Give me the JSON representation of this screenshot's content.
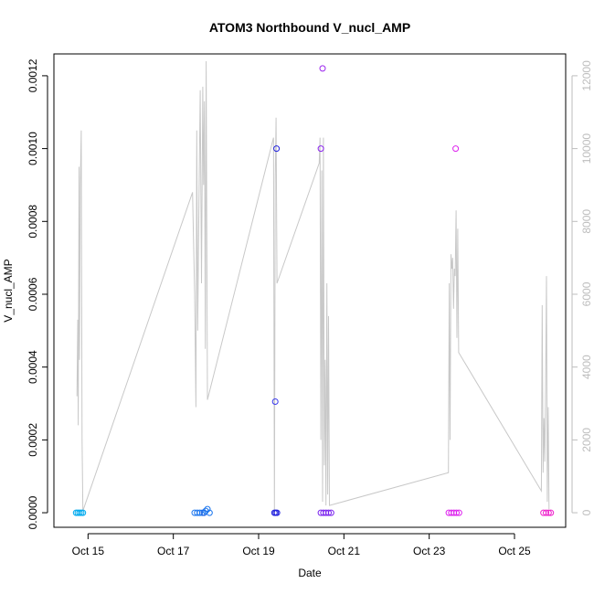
{
  "chart_data": {
    "type": "scatter",
    "title": "ATOM3 Northbound V_nucl_AMP",
    "xlabel": "Date",
    "ylabel": "V_nucl_AMP",
    "x_unit": "days (October)",
    "xlim": [
      14.2,
      26.2
    ],
    "ylim": [
      -4e-05,
      0.00126
    ],
    "y2lim": [
      -400,
      12600
    ],
    "x_ticks": [
      {
        "value": 15,
        "label": "Oct 15"
      },
      {
        "value": 17,
        "label": "Oct 17"
      },
      {
        "value": 19,
        "label": "Oct 19"
      },
      {
        "value": 21,
        "label": "Oct 21"
      },
      {
        "value": 23,
        "label": "Oct 23"
      },
      {
        "value": 25,
        "label": "Oct 25"
      }
    ],
    "y_ticks": [
      {
        "value": 0,
        "label": "0.0000"
      },
      {
        "value": 0.0002,
        "label": "0.0002"
      },
      {
        "value": 0.0004,
        "label": "0.0004"
      },
      {
        "value": 0.0006,
        "label": "0.0006"
      },
      {
        "value": 0.0008,
        "label": "0.0008"
      },
      {
        "value": 0.001,
        "label": "0.0010"
      },
      {
        "value": 0.0012,
        "label": "0.0012"
      }
    ],
    "y2_ticks": [
      {
        "value": 0,
        "label": "0"
      },
      {
        "value": 2000,
        "label": "2000"
      },
      {
        "value": 4000,
        "label": "4000"
      },
      {
        "value": 6000,
        "label": "6000"
      },
      {
        "value": 8000,
        "label": "8000"
      },
      {
        "value": 10000,
        "label": "10000"
      },
      {
        "value": 12000,
        "label": "12000"
      }
    ],
    "grid": false,
    "colors": {
      "line": "#c8c8c8",
      "right_axis": "#bdbdbd"
    },
    "points": [
      {
        "x": 14.72,
        "y": 0,
        "color": "#00aaee"
      },
      {
        "x": 14.76,
        "y": 0,
        "color": "#00aaee"
      },
      {
        "x": 14.8,
        "y": 0,
        "color": "#00aaee"
      },
      {
        "x": 14.84,
        "y": 0,
        "color": "#00aaee"
      },
      {
        "x": 14.88,
        "y": 0,
        "color": "#00aaee"
      },
      {
        "x": 17.5,
        "y": 0,
        "color": "#1a75ee"
      },
      {
        "x": 17.56,
        "y": 0,
        "color": "#1a75ee"
      },
      {
        "x": 17.62,
        "y": 0,
        "color": "#1a75ee"
      },
      {
        "x": 17.68,
        "y": 0,
        "color": "#1a75ee"
      },
      {
        "x": 17.72,
        "y": 0,
        "color": "#2060e0"
      },
      {
        "x": 17.76,
        "y": 5e-06,
        "color": "#1a75ee"
      },
      {
        "x": 17.8,
        "y": 1e-05,
        "color": "#1a75ee"
      },
      {
        "x": 17.85,
        "y": 0,
        "color": "#1a75ee"
      },
      {
        "x": 19.37,
        "y": 0,
        "color": "#2222dd"
      },
      {
        "x": 19.4,
        "y": 0,
        "color": "#2222dd"
      },
      {
        "x": 19.43,
        "y": 0,
        "color": "#2222dd"
      },
      {
        "x": 19.39,
        "y": 0.000305,
        "color": "#3a3aee"
      },
      {
        "x": 19.42,
        "y": 0.001,
        "color": "#2222dd"
      },
      {
        "x": 20.46,
        "y": 0,
        "color": "#7a22ee"
      },
      {
        "x": 20.52,
        "y": 0,
        "color": "#7a22ee"
      },
      {
        "x": 20.58,
        "y": 0,
        "color": "#7a22ee"
      },
      {
        "x": 20.64,
        "y": 0,
        "color": "#7a22ee"
      },
      {
        "x": 20.7,
        "y": 0,
        "color": "#7a22ee"
      },
      {
        "x": 20.46,
        "y": 0.001,
        "color": "#8a22ee"
      },
      {
        "x": 20.5,
        "y": 0.00122,
        "color": "#9a22ee"
      },
      {
        "x": 23.46,
        "y": 0,
        "color": "#dd22ee"
      },
      {
        "x": 23.52,
        "y": 0,
        "color": "#dd22ee"
      },
      {
        "x": 23.58,
        "y": 0,
        "color": "#dd22ee"
      },
      {
        "x": 23.64,
        "y": 0,
        "color": "#dd22ee"
      },
      {
        "x": 23.7,
        "y": 0,
        "color": "#dd22ee"
      },
      {
        "x": 23.62,
        "y": 0.001,
        "color": "#dd22ee"
      },
      {
        "x": 25.68,
        "y": 0,
        "color": "#ee22cc"
      },
      {
        "x": 25.74,
        "y": 0,
        "color": "#ee22cc"
      },
      {
        "x": 25.8,
        "y": 0,
        "color": "#ee22cc"
      },
      {
        "x": 25.85,
        "y": 0,
        "color": "#ee22cc"
      }
    ],
    "line_series": [
      {
        "x": 14.74,
        "y": 3200
      },
      {
        "x": 14.76,
        "y": 5300
      },
      {
        "x": 14.77,
        "y": 2400
      },
      {
        "x": 14.79,
        "y": 9500
      },
      {
        "x": 14.8,
        "y": 4200
      },
      {
        "x": 14.82,
        "y": 9000
      },
      {
        "x": 14.84,
        "y": 10500
      },
      {
        "x": 14.86,
        "y": 2000
      },
      {
        "x": 14.88,
        "y": 50
      },
      {
        "x": 17.45,
        "y": 8800
      },
      {
        "x": 17.5,
        "y": 6000
      },
      {
        "x": 17.53,
        "y": 2900
      },
      {
        "x": 17.55,
        "y": 10500
      },
      {
        "x": 17.57,
        "y": 5000
      },
      {
        "x": 17.6,
        "y": 8500
      },
      {
        "x": 17.63,
        "y": 11600
      },
      {
        "x": 17.66,
        "y": 6300
      },
      {
        "x": 17.69,
        "y": 11700
      },
      {
        "x": 17.71,
        "y": 9000
      },
      {
        "x": 17.73,
        "y": 11300
      },
      {
        "x": 17.75,
        "y": 4500
      },
      {
        "x": 17.77,
        "y": 12400
      },
      {
        "x": 17.8,
        "y": 3100
      },
      {
        "x": 19.35,
        "y": 10300
      },
      {
        "x": 19.37,
        "y": 0
      },
      {
        "x": 19.39,
        "y": 9200
      },
      {
        "x": 19.41,
        "y": 10850
      },
      {
        "x": 19.43,
        "y": 6300
      },
      {
        "x": 20.42,
        "y": 9600
      },
      {
        "x": 20.44,
        "y": 10300
      },
      {
        "x": 20.46,
        "y": 2000
      },
      {
        "x": 20.48,
        "y": 9400
      },
      {
        "x": 20.5,
        "y": 300
      },
      {
        "x": 20.52,
        "y": 10300
      },
      {
        "x": 20.54,
        "y": 1300
      },
      {
        "x": 20.56,
        "y": 4200
      },
      {
        "x": 20.58,
        "y": 200
      },
      {
        "x": 20.6,
        "y": 6300
      },
      {
        "x": 20.62,
        "y": 500
      },
      {
        "x": 20.64,
        "y": 5400
      },
      {
        "x": 20.66,
        "y": 200
      },
      {
        "x": 23.45,
        "y": 1100
      },
      {
        "x": 23.47,
        "y": 6300
      },
      {
        "x": 23.49,
        "y": 2000
      },
      {
        "x": 23.51,
        "y": 7100
      },
      {
        "x": 23.53,
        "y": 6700
      },
      {
        "x": 23.55,
        "y": 7000
      },
      {
        "x": 23.57,
        "y": 5600
      },
      {
        "x": 23.59,
        "y": 6700
      },
      {
        "x": 23.61,
        "y": 6500
      },
      {
        "x": 23.63,
        "y": 8300
      },
      {
        "x": 23.65,
        "y": 4800
      },
      {
        "x": 23.67,
        "y": 7800
      },
      {
        "x": 23.69,
        "y": 4400
      },
      {
        "x": 25.63,
        "y": 600
      },
      {
        "x": 25.65,
        "y": 5700
      },
      {
        "x": 25.67,
        "y": 1100
      },
      {
        "x": 25.69,
        "y": 2600
      },
      {
        "x": 25.71,
        "y": 1400
      },
      {
        "x": 25.73,
        "y": 3600
      },
      {
        "x": 25.75,
        "y": 6500
      },
      {
        "x": 25.77,
        "y": 300
      },
      {
        "x": 25.79,
        "y": 2900
      },
      {
        "x": 25.81,
        "y": 100
      }
    ]
  }
}
